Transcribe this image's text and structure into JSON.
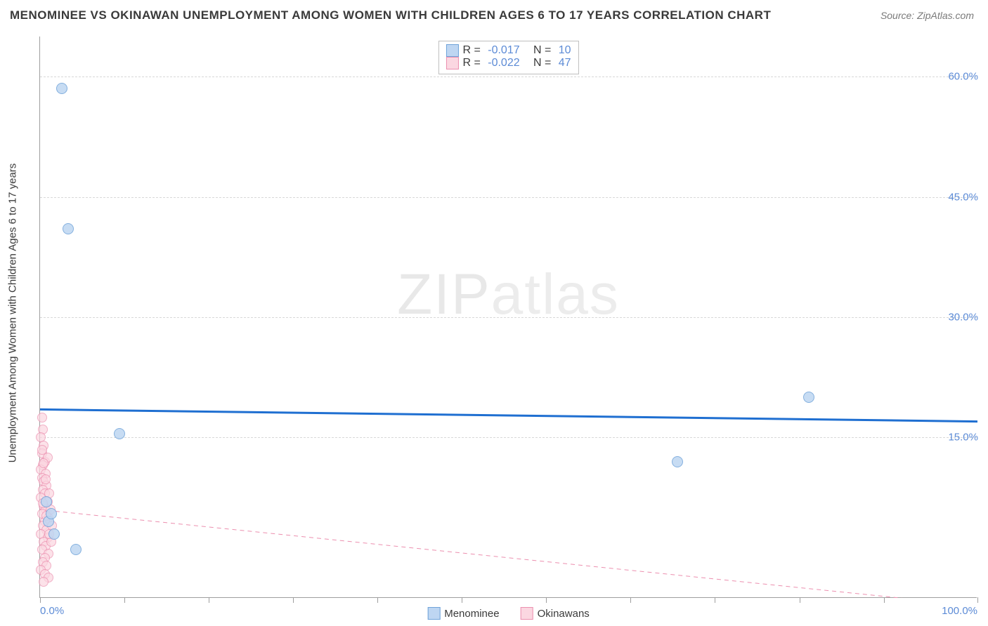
{
  "title": "MENOMINEE VS OKINAWAN UNEMPLOYMENT AMONG WOMEN WITH CHILDREN AGES 6 TO 17 YEARS CORRELATION CHART",
  "source": "Source: ZipAtlas.com",
  "y_axis_label": "Unemployment Among Women with Children Ages 6 to 17 years",
  "watermark_a": "ZIP",
  "watermark_b": "atlas",
  "chart": {
    "type": "scatter",
    "background_color": "#ffffff",
    "grid_color": "#d8d8d8",
    "axis_color": "#9e9e9e",
    "tick_label_color": "#5c8bd6",
    "xlim": [
      0,
      100
    ],
    "ylim": [
      -5,
      65
    ],
    "x_ticks": [
      0,
      9,
      18,
      27,
      36,
      45,
      54,
      63,
      72,
      81,
      90,
      100
    ],
    "x_tick_labels": {
      "0": "0.0%",
      "100": "100.0%"
    },
    "y_ticks": [
      15,
      30,
      45,
      60
    ],
    "y_tick_labels": {
      "15": "15.0%",
      "30": "30.0%",
      "45": "45.0%",
      "60": "60.0%"
    }
  },
  "series": {
    "menominee": {
      "label": "Menominee",
      "fill": "#bed6f2",
      "stroke": "#6fa3d9",
      "marker_radius": 8,
      "marker_opacity": 0.85,
      "trend": {
        "y_at_x0": 18.5,
        "y_at_x100": 17.0,
        "color": "#1f6fd1",
        "width": 3,
        "dash": "none"
      },
      "points": [
        {
          "x": 2.3,
          "y": 58.5
        },
        {
          "x": 3.0,
          "y": 41.0
        },
        {
          "x": 8.5,
          "y": 15.5
        },
        {
          "x": 0.7,
          "y": 7.0
        },
        {
          "x": 0.9,
          "y": 4.5
        },
        {
          "x": 1.5,
          "y": 3.0
        },
        {
          "x": 3.8,
          "y": 1.0
        },
        {
          "x": 1.2,
          "y": 5.5
        },
        {
          "x": 68.0,
          "y": 12.0
        },
        {
          "x": 82.0,
          "y": 20.0
        }
      ]
    },
    "okinawans": {
      "label": "Okinawans",
      "fill": "#fbd7e1",
      "stroke": "#ec8faf",
      "marker_radius": 7,
      "marker_opacity": 0.7,
      "trend": {
        "y_at_x0": 6.0,
        "y_at_x100": -6.0,
        "color": "#ec8faf",
        "width": 1,
        "dash": "6 5"
      },
      "points": [
        {
          "x": 0.2,
          "y": 17.5
        },
        {
          "x": 0.3,
          "y": 16.0
        },
        {
          "x": 0.1,
          "y": 15.0
        },
        {
          "x": 0.4,
          "y": 14.0
        },
        {
          "x": 0.2,
          "y": 13.0
        },
        {
          "x": 0.5,
          "y": 12.0
        },
        {
          "x": 0.3,
          "y": 11.5
        },
        {
          "x": 0.1,
          "y": 11.0
        },
        {
          "x": 0.6,
          "y": 10.5
        },
        {
          "x": 0.2,
          "y": 10.0
        },
        {
          "x": 0.4,
          "y": 9.5
        },
        {
          "x": 0.7,
          "y": 9.0
        },
        {
          "x": 0.3,
          "y": 8.5
        },
        {
          "x": 0.5,
          "y": 8.0
        },
        {
          "x": 0.1,
          "y": 7.5
        },
        {
          "x": 0.8,
          "y": 7.0
        },
        {
          "x": 0.4,
          "y": 6.5
        },
        {
          "x": 0.6,
          "y": 6.0
        },
        {
          "x": 0.2,
          "y": 5.5
        },
        {
          "x": 0.9,
          "y": 5.0
        },
        {
          "x": 0.5,
          "y": 4.5
        },
        {
          "x": 0.3,
          "y": 4.0
        },
        {
          "x": 0.7,
          "y": 3.5
        },
        {
          "x": 0.1,
          "y": 3.0
        },
        {
          "x": 0.8,
          "y": 2.5
        },
        {
          "x": 0.4,
          "y": 2.0
        },
        {
          "x": 0.6,
          "y": 1.5
        },
        {
          "x": 0.2,
          "y": 1.0
        },
        {
          "x": 0.9,
          "y": 0.5
        },
        {
          "x": 0.5,
          "y": 0.0
        },
        {
          "x": 1.1,
          "y": 6.0
        },
        {
          "x": 1.3,
          "y": 4.0
        },
        {
          "x": 1.0,
          "y": 8.0
        },
        {
          "x": 1.2,
          "y": 2.0
        },
        {
          "x": 0.3,
          "y": -0.5
        },
        {
          "x": 0.7,
          "y": -1.0
        },
        {
          "x": 0.1,
          "y": -1.5
        },
        {
          "x": 0.5,
          "y": -2.0
        },
        {
          "x": 0.9,
          "y": -2.5
        },
        {
          "x": 0.4,
          "y": -3.0
        },
        {
          "x": 0.8,
          "y": 12.5
        },
        {
          "x": 0.2,
          "y": 13.5
        },
        {
          "x": 0.6,
          "y": 9.8
        },
        {
          "x": 1.0,
          "y": 3.0
        },
        {
          "x": 0.3,
          "y": 6.8
        },
        {
          "x": 0.7,
          "y": 5.2
        },
        {
          "x": 0.4,
          "y": 11.8
        }
      ]
    }
  },
  "legend_corr": {
    "rows": [
      {
        "swatch_fill": "#bed6f2",
        "swatch_stroke": "#6fa3d9",
        "r_label": "R = ",
        "r": "-0.017",
        "n_label": "   N = ",
        "n": "10"
      },
      {
        "swatch_fill": "#fbd7e1",
        "swatch_stroke": "#ec8faf",
        "r_label": "R = ",
        "r": "-0.022",
        "n_label": "   N = ",
        "n": "47"
      }
    ]
  },
  "legend_bottom": [
    {
      "swatch_fill": "#bed6f2",
      "swatch_stroke": "#6fa3d9",
      "label": "Menominee"
    },
    {
      "swatch_fill": "#fbd7e1",
      "swatch_stroke": "#ec8faf",
      "label": "Okinawans"
    }
  ]
}
